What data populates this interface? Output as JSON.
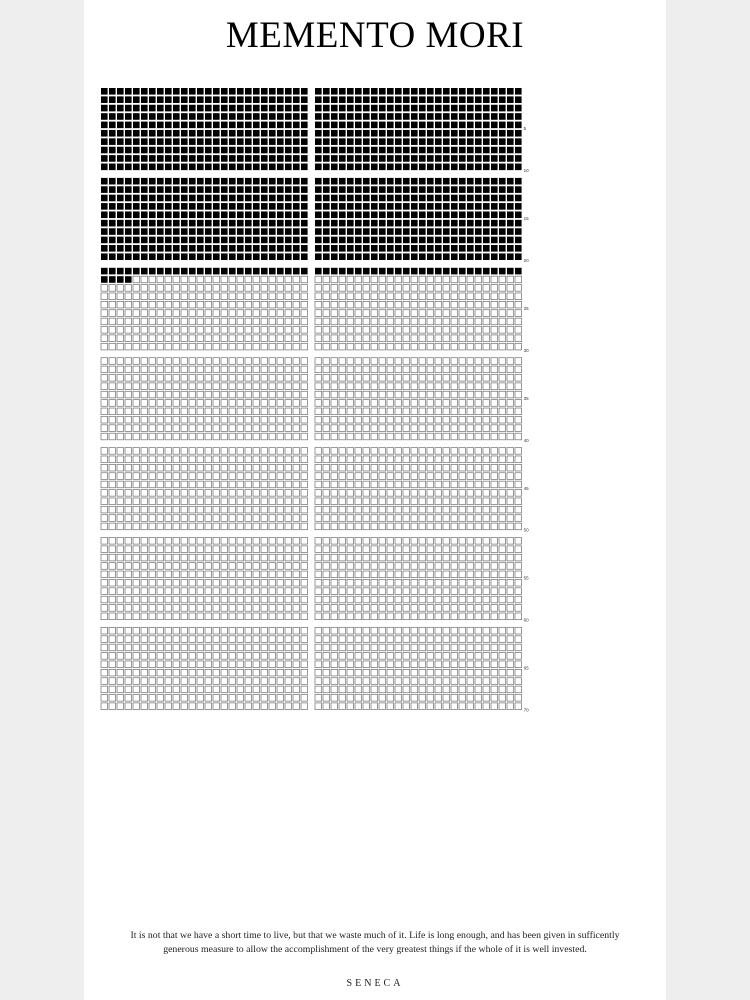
{
  "poster": {
    "title": "MEMENTO MORI",
    "total_years": 70,
    "weeks_per_year": 52,
    "weeks_lived": 1096,
    "year_markers": [
      "5",
      "10",
      "15",
      "20",
      "25",
      "30",
      "35",
      "40",
      "45",
      "50",
      "55",
      "60",
      "65",
      "70"
    ],
    "quote": "It is not that we have a short time to live, but that we waste much of it. Life is long enough, and has been given in sufficently generous measure to allow the accomplishment of the very greatest things if the whole of it is well invested.",
    "author": "SENECA",
    "colors": {
      "filled": "#000000",
      "empty_stroke": "#6f6f6f",
      "background": "#ffffff",
      "surround": "#eeeeee"
    }
  }
}
